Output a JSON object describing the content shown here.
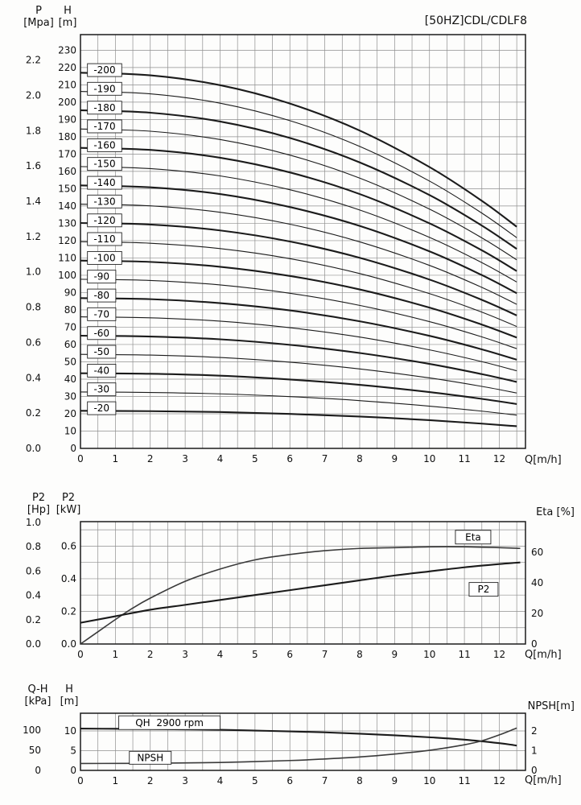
{
  "chart_data": [
    {
      "id": "head-flow-curves",
      "type": "line",
      "title": "[50HZ]CDL/CDLF8",
      "xlabel": "Q[m/h]",
      "xlim": [
        0,
        12.75
      ],
      "ylim_m": [
        0,
        239
      ],
      "grid": "on",
      "axis_titles": {
        "outer": [
          "P",
          "[Mpa]"
        ],
        "inner": [
          "H",
          "[m]"
        ]
      },
      "x_ticks": [
        "0",
        "1",
        "2",
        "3",
        "4",
        "5",
        "6",
        "7",
        "8",
        "9",
        "10",
        "11",
        "12"
      ],
      "p_ticks_mpa": [
        "2.2",
        "2.0",
        "1.8",
        "1.6",
        "1.4",
        "1.2",
        "1.0",
        "0.8",
        "0.6",
        "0.4",
        "0.2",
        "0.0"
      ],
      "h_ticks_m": [
        "230",
        "220",
        "210",
        "200",
        "190",
        "180",
        "170",
        "160",
        "150",
        "140",
        "130",
        "120",
        "110",
        "100",
        "90",
        "80",
        "70",
        "60",
        "50",
        "40",
        "30",
        "20",
        "10",
        "0"
      ],
      "flow_points": [
        0,
        2,
        4,
        6,
        8,
        10,
        11.5,
        12.5
      ],
      "series": [
        {
          "label": "-200",
          "bold": true,
          "heads": [
            217.0,
            215.5,
            209.8,
            199.2,
            183.6,
            162.5,
            143.0,
            128.0
          ]
        },
        {
          "label": "-190",
          "bold": false,
          "heads": [
            206.2,
            204.8,
            199.4,
            189.3,
            174.4,
            154.4,
            135.9,
            121.7
          ]
        },
        {
          "label": "-180",
          "bold": true,
          "heads": [
            195.3,
            193.9,
            188.8,
            179.3,
            165.2,
            146.3,
            128.7,
            115.2
          ]
        },
        {
          "label": "-170",
          "bold": false,
          "heads": [
            184.5,
            183.2,
            178.4,
            169.4,
            156.1,
            138.2,
            121.6,
            108.9
          ]
        },
        {
          "label": "-160",
          "bold": true,
          "heads": [
            173.6,
            172.4,
            167.9,
            159.4,
            146.9,
            130.0,
            114.4,
            102.4
          ]
        },
        {
          "label": "-150",
          "bold": false,
          "heads": [
            162.8,
            161.6,
            157.4,
            149.4,
            137.7,
            121.9,
            107.3,
            96.1
          ]
        },
        {
          "label": "-140",
          "bold": true,
          "heads": [
            151.9,
            150.8,
            146.9,
            139.4,
            128.5,
            113.8,
            100.1,
            89.6
          ]
        },
        {
          "label": "-130",
          "bold": false,
          "heads": [
            141.1,
            140.1,
            136.4,
            129.5,
            119.3,
            105.7,
            93.0,
            83.2
          ]
        },
        {
          "label": "-120",
          "bold": true,
          "heads": [
            130.2,
            129.3,
            125.9,
            119.5,
            110.1,
            97.5,
            85.8,
            76.8
          ]
        },
        {
          "label": "-110",
          "bold": false,
          "heads": [
            119.4,
            118.5,
            115.4,
            109.6,
            101.0,
            89.4,
            78.7,
            70.4
          ]
        },
        {
          "label": "-100",
          "bold": true,
          "heads": [
            108.5,
            107.7,
            104.9,
            99.6,
            91.8,
            81.3,
            71.5,
            64.0
          ]
        },
        {
          "label": "-90",
          "bold": false,
          "heads": [
            97.7,
            97.0,
            94.4,
            89.6,
            82.6,
            73.2,
            64.4,
            57.6
          ]
        },
        {
          "label": "-80",
          "bold": true,
          "heads": [
            86.8,
            86.2,
            83.9,
            79.7,
            73.4,
            65.0,
            57.2,
            51.2
          ]
        },
        {
          "label": "-70",
          "bold": false,
          "heads": [
            76.0,
            75.4,
            73.5,
            69.7,
            64.3,
            56.9,
            50.1,
            44.8
          ]
        },
        {
          "label": "-60",
          "bold": true,
          "heads": [
            65.1,
            64.6,
            63.0,
            59.8,
            55.1,
            48.8,
            42.9,
            38.4
          ]
        },
        {
          "label": "-50",
          "bold": false,
          "heads": [
            54.3,
            53.9,
            52.5,
            49.8,
            45.9,
            40.7,
            35.8,
            32.0
          ]
        },
        {
          "label": "-40",
          "bold": true,
          "heads": [
            43.4,
            43.1,
            42.0,
            39.8,
            36.7,
            32.5,
            28.6,
            25.6
          ]
        },
        {
          "label": "-30",
          "bold": false,
          "heads": [
            32.6,
            32.3,
            31.5,
            29.9,
            27.6,
            24.4,
            21.5,
            19.2
          ]
        },
        {
          "label": "-20",
          "bold": true,
          "heads": [
            21.7,
            21.5,
            21.0,
            19.9,
            18.4,
            16.3,
            14.3,
            12.8
          ]
        }
      ]
    },
    {
      "id": "power-efficiency",
      "type": "line",
      "xlabel": "Q[m/h]",
      "xlim": [
        0,
        12.75
      ],
      "ylim_kw": [
        0,
        0.75
      ],
      "grid": "on",
      "axis_titles": {
        "outer": [
          "P2",
          "[Hp]"
        ],
        "inner": [
          "P2",
          "[kW]"
        ],
        "right": "Eta [%]"
      },
      "x_ticks": [
        "0",
        "1",
        "2",
        "3",
        "4",
        "5",
        "6",
        "7",
        "8",
        "9",
        "10",
        "11",
        "12"
      ],
      "hp_ticks": [
        "1.0",
        "0.8",
        "0.6",
        "0.4",
        "0.2",
        "0.0"
      ],
      "kw_ticks": [
        "0.6",
        "0.4",
        "0.2",
        "0.0"
      ],
      "eta_ticks": [
        "60",
        "40",
        "20",
        "0"
      ],
      "series": [
        {
          "name": "Eta",
          "unit": "%",
          "x": [
            0,
            0.5,
            1,
            1.5,
            2,
            3,
            4,
            5,
            6,
            7,
            8,
            9,
            10,
            11,
            12,
            12.6
          ],
          "values": [
            0,
            8,
            16,
            23.5,
            30,
            41,
            49,
            55,
            58.5,
            61,
            62.5,
            63,
            63.5,
            63.5,
            63,
            62.5
          ]
        },
        {
          "name": "P2",
          "unit": "kW",
          "x": [
            0,
            1,
            2,
            3,
            4,
            5,
            6,
            7,
            8,
            9,
            10,
            11,
            12,
            12.6
          ],
          "values": [
            0.13,
            0.17,
            0.21,
            0.24,
            0.27,
            0.3,
            0.33,
            0.36,
            0.39,
            0.42,
            0.445,
            0.47,
            0.49,
            0.5
          ]
        }
      ],
      "annotations": [
        {
          "text": "Eta"
        },
        {
          "text": "P2"
        }
      ]
    },
    {
      "id": "qh-npsh",
      "type": "line",
      "xlabel": "Q[m/h]",
      "xlim": [
        0,
        12.75
      ],
      "ylim_m": [
        0,
        14.5
      ],
      "grid": "on",
      "axis_titles": {
        "outer": [
          "Q-H",
          "[kPa]"
        ],
        "inner": [
          "H",
          "[m]"
        ],
        "right": "NPSH[m]"
      },
      "x_ticks": [
        "0",
        "1",
        "2",
        "3",
        "4",
        "5",
        "6",
        "7",
        "8",
        "9",
        "10",
        "11",
        "12"
      ],
      "kpa_ticks": [
        "100",
        "50",
        "0"
      ],
      "m_ticks": [
        "10",
        "5",
        "0"
      ],
      "npsh_ticks": [
        "2",
        "1",
        "0"
      ],
      "series": [
        {
          "name": "QH 2900 rpm",
          "unit": "m",
          "x": [
            0,
            1,
            2,
            3,
            4,
            5,
            6,
            7,
            8,
            9,
            10,
            11,
            12,
            12.5
          ],
          "values": [
            10.6,
            10.55,
            10.5,
            10.4,
            10.3,
            10.1,
            9.9,
            9.65,
            9.3,
            8.9,
            8.4,
            7.8,
            6.9,
            6.3
          ]
        },
        {
          "name": "NPSH",
          "unit": "m",
          "x": [
            0,
            2,
            4,
            6,
            7,
            8,
            9,
            10,
            11,
            11.5,
            12,
            12.5
          ],
          "values": [
            0.35,
            0.36,
            0.4,
            0.5,
            0.58,
            0.68,
            0.83,
            1.02,
            1.3,
            1.5,
            1.8,
            2.15
          ]
        }
      ],
      "annotations": [
        {
          "text": "QH  2900 rpm"
        },
        {
          "text": "NPSH"
        }
      ]
    }
  ]
}
